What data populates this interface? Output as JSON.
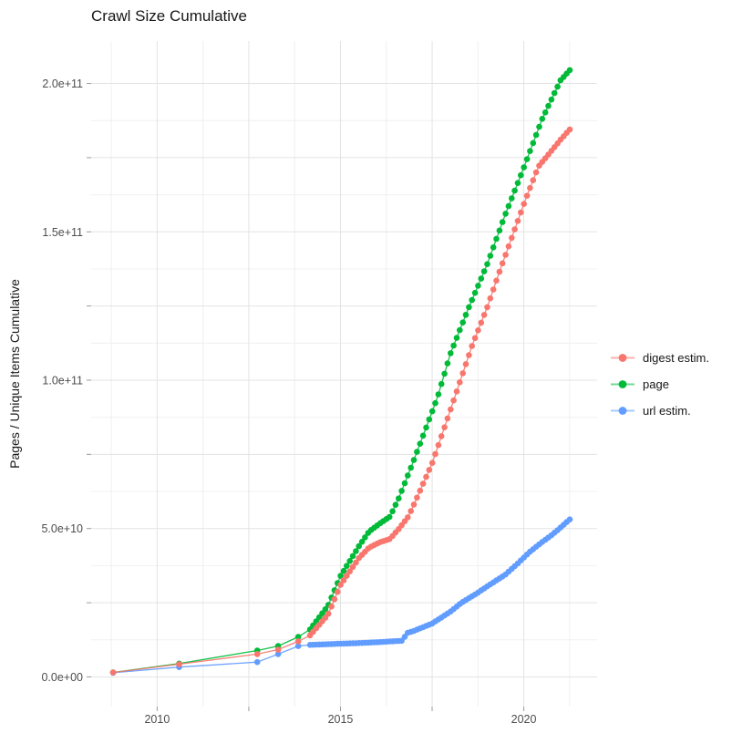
{
  "chart_data": {
    "type": "scatter",
    "title": "Crawl Size Cumulative",
    "xlabel": "",
    "ylabel": "Pages / Unique Items Cumulative",
    "value_unit": "billions (1e9) of pages / unique items",
    "grid": true,
    "legend_position": "right",
    "xlim": [
      2008.2,
      2022.0
    ],
    "ylim_billions": [
      -10,
      214.3
    ],
    "x_ticks": [
      {
        "value": 2010,
        "label": "2010"
      },
      {
        "value": 2015,
        "label": "2015"
      },
      {
        "value": 2020,
        "label": "2020"
      }
    ],
    "x_unlabeled_ticks": [
      2012.5,
      2017.5
    ],
    "x_minor_gridlines": [
      2008.75,
      2011.25,
      2013.75,
      2016.25,
      2018.75,
      2021.25
    ],
    "y_ticks": [
      {
        "value": 0,
        "label": "0.0e+00"
      },
      {
        "value": 50,
        "label": "5.0e+10"
      },
      {
        "value": 100,
        "label": "1.0e+11"
      },
      {
        "value": 150,
        "label": "1.5e+11"
      },
      {
        "value": 200,
        "label": "2.0e+11"
      }
    ],
    "y_unlabeled_ticks": [
      25,
      75,
      125,
      175
    ],
    "y_minor_gridlines": [
      12.5,
      37.5,
      62.5,
      87.5,
      112.5,
      137.5,
      162.5,
      187.5
    ],
    "sparse_point_years": [
      2008.8,
      2010.6,
      2012.73,
      2013.3,
      2013.85
    ],
    "monthly_points_range": [
      2014.17,
      2021.25
    ],
    "series": [
      {
        "name": "digest estim.",
        "color": "#F8766D",
        "anchors_year_billions": [
          [
            2008.8,
            1.5
          ],
          [
            2010.6,
            4.3
          ],
          [
            2012.73,
            7.7
          ],
          [
            2013.3,
            9.2
          ],
          [
            2013.85,
            12
          ],
          [
            2014.17,
            14
          ],
          [
            2014.66,
            21
          ],
          [
            2015.0,
            31
          ],
          [
            2015.5,
            40
          ],
          [
            2015.78,
            43.6
          ],
          [
            2016.1,
            45.5
          ],
          [
            2016.35,
            46.5
          ],
          [
            2016.6,
            50
          ],
          [
            2016.85,
            54
          ],
          [
            2017.0,
            58
          ],
          [
            2017.5,
            72
          ],
          [
            2018.0,
            90
          ],
          [
            2018.3,
            101
          ],
          [
            2018.6,
            112
          ],
          [
            2019.0,
            124.5
          ],
          [
            2019.35,
            137
          ],
          [
            2019.7,
            149
          ],
          [
            2020.05,
            161
          ],
          [
            2020.4,
            172
          ],
          [
            2021.0,
            181
          ],
          [
            2021.29,
            185
          ]
        ]
      },
      {
        "name": "page",
        "color": "#00BA38",
        "anchors_year_billions": [
          [
            2008.8,
            1.5
          ],
          [
            2010.6,
            4.5
          ],
          [
            2012.73,
            8.9
          ],
          [
            2013.3,
            10.4
          ],
          [
            2013.85,
            13.5
          ],
          [
            2014.17,
            16
          ],
          [
            2014.66,
            24
          ],
          [
            2015.0,
            34
          ],
          [
            2015.5,
            44
          ],
          [
            2015.78,
            49
          ],
          [
            2016.05,
            51.5
          ],
          [
            2016.35,
            54
          ],
          [
            2016.6,
            60.5
          ],
          [
            2017.0,
            73
          ],
          [
            2017.64,
            94
          ],
          [
            2018.0,
            109
          ],
          [
            2018.5,
            124.5
          ],
          [
            2019.0,
            139
          ],
          [
            2019.5,
            156
          ],
          [
            2019.95,
            170
          ],
          [
            2020.5,
            188
          ],
          [
            2021.0,
            201
          ],
          [
            2021.29,
            205
          ]
        ]
      },
      {
        "name": "url estim.",
        "color": "#619CFF",
        "anchors_year_billions": [
          [
            2008.8,
            1.4
          ],
          [
            2010.6,
            3.3
          ],
          [
            2012.73,
            5.0
          ],
          [
            2013.3,
            7.7
          ],
          [
            2013.85,
            10.4
          ],
          [
            2014.17,
            10.8
          ],
          [
            2015.0,
            11.2
          ],
          [
            2015.5,
            11.4
          ],
          [
            2016.0,
            11.7
          ],
          [
            2016.4,
            12.0
          ],
          [
            2016.7,
            12.2
          ],
          [
            2016.8,
            14.7
          ],
          [
            2017.0,
            15.5
          ],
          [
            2017.5,
            18
          ],
          [
            2018.0,
            22
          ],
          [
            2018.3,
            25
          ],
          [
            2018.7,
            28
          ],
          [
            2019.0,
            30.5
          ],
          [
            2019.5,
            34.5
          ],
          [
            2019.85,
            38.4
          ],
          [
            2020.15,
            42
          ],
          [
            2020.45,
            45
          ],
          [
            2020.75,
            47.7
          ],
          [
            2021.0,
            50.3
          ],
          [
            2021.29,
            53.5
          ]
        ]
      }
    ],
    "colors": {
      "major_grid": "#e3e3e3",
      "minor_grid": "#f0f0f0",
      "tick_mark": "#9a9a9a",
      "tick_label": "#4d4d4d",
      "text": "#171717",
      "background": "#ffffff"
    }
  }
}
